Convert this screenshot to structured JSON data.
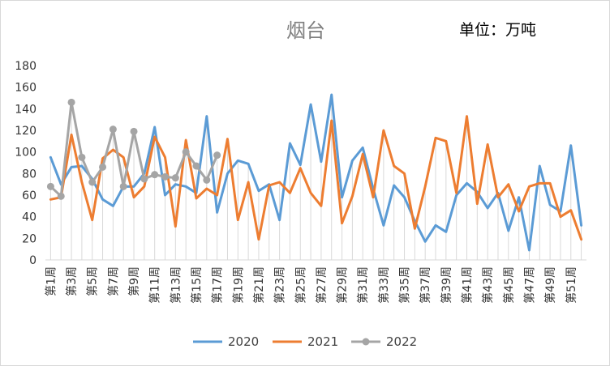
{
  "chart_data": {
    "type": "line",
    "title": "烟台",
    "unit_label": "单位：万吨",
    "xlabel": "",
    "ylabel": "",
    "ylim": [
      0,
      180
    ],
    "yticks": [
      0,
      20,
      40,
      60,
      80,
      100,
      120,
      140,
      160,
      180
    ],
    "grid": "vertical drop lines",
    "legend": "bottom",
    "categories": [
      "第1周",
      "第2周",
      "第3周",
      "第4周",
      "第5周",
      "第6周",
      "第7周",
      "第8周",
      "第9周",
      "第10周",
      "第11周",
      "第12周",
      "第13周",
      "第14周",
      "第15周",
      "第16周",
      "第17周",
      "第18周",
      "第19周",
      "第20周",
      "第21周",
      "第22周",
      "第23周",
      "第24周",
      "第25周",
      "第26周",
      "第27周",
      "第28周",
      "第29周",
      "第30周",
      "第31周",
      "第32周",
      "第33周",
      "第34周",
      "第35周",
      "第36周",
      "第37周",
      "第38周",
      "第39周",
      "第40周",
      "第41周",
      "第42周",
      "第43周",
      "第44周",
      "第45周",
      "第46周",
      "第47周",
      "第48周",
      "第49周",
      "第50周",
      "第51周",
      "第52周"
    ],
    "tick_labels": [
      "第1周",
      "第3周",
      "第5周",
      "第7周",
      "第9周",
      "第11周",
      "第13周",
      "第15周",
      "第17周",
      "第19周",
      "第21周",
      "第23周",
      "第25周",
      "第27周",
      "第29周",
      "第31周",
      "第33周",
      "第35周",
      "第37周",
      "第39周",
      "第41周",
      "第43周",
      "第45周",
      "第47周",
      "第49周",
      "第51周"
    ],
    "series": [
      {
        "name": "2020",
        "color": "#5b9bd5",
        "markers": false,
        "values": [
          95,
          70,
          86,
          87,
          75,
          56,
          50,
          68,
          68,
          80,
          123,
          60,
          70,
          68,
          62,
          133,
          44,
          80,
          92,
          89,
          64,
          70,
          37,
          108,
          88,
          144,
          91,
          153,
          58,
          92,
          104,
          66,
          32,
          69,
          58,
          36,
          17,
          32,
          26,
          60,
          71,
          63,
          48,
          62,
          27,
          58,
          9,
          87,
          51,
          45,
          106,
          32
        ]
      },
      {
        "name": "2021",
        "color": "#ed7d31",
        "markers": false,
        "values": [
          56,
          58,
          116,
          72,
          37,
          94,
          102,
          95,
          58,
          68,
          114,
          95,
          31,
          111,
          57,
          66,
          60,
          112,
          37,
          72,
          19,
          69,
          72,
          62,
          85,
          62,
          50,
          129,
          34,
          59,
          98,
          58,
          120,
          87,
          80,
          29,
          68,
          113,
          110,
          62,
          133,
          52,
          107,
          58,
          70,
          45,
          68,
          71,
          71,
          40,
          46,
          19
        ]
      },
      {
        "name": "2022",
        "color": "#a5a5a5",
        "markers": true,
        "values": [
          68,
          59,
          146,
          95,
          72,
          86,
          121,
          68,
          119,
          75,
          79,
          77,
          76,
          100,
          87,
          74,
          97,
          null,
          null,
          null,
          null,
          null,
          null,
          null,
          null,
          null,
          null,
          null,
          null,
          null,
          null,
          null,
          null,
          null,
          null,
          null,
          null,
          null,
          null,
          null,
          null,
          null,
          null,
          null,
          null,
          null,
          null,
          null,
          null,
          null,
          null,
          null
        ]
      }
    ]
  }
}
